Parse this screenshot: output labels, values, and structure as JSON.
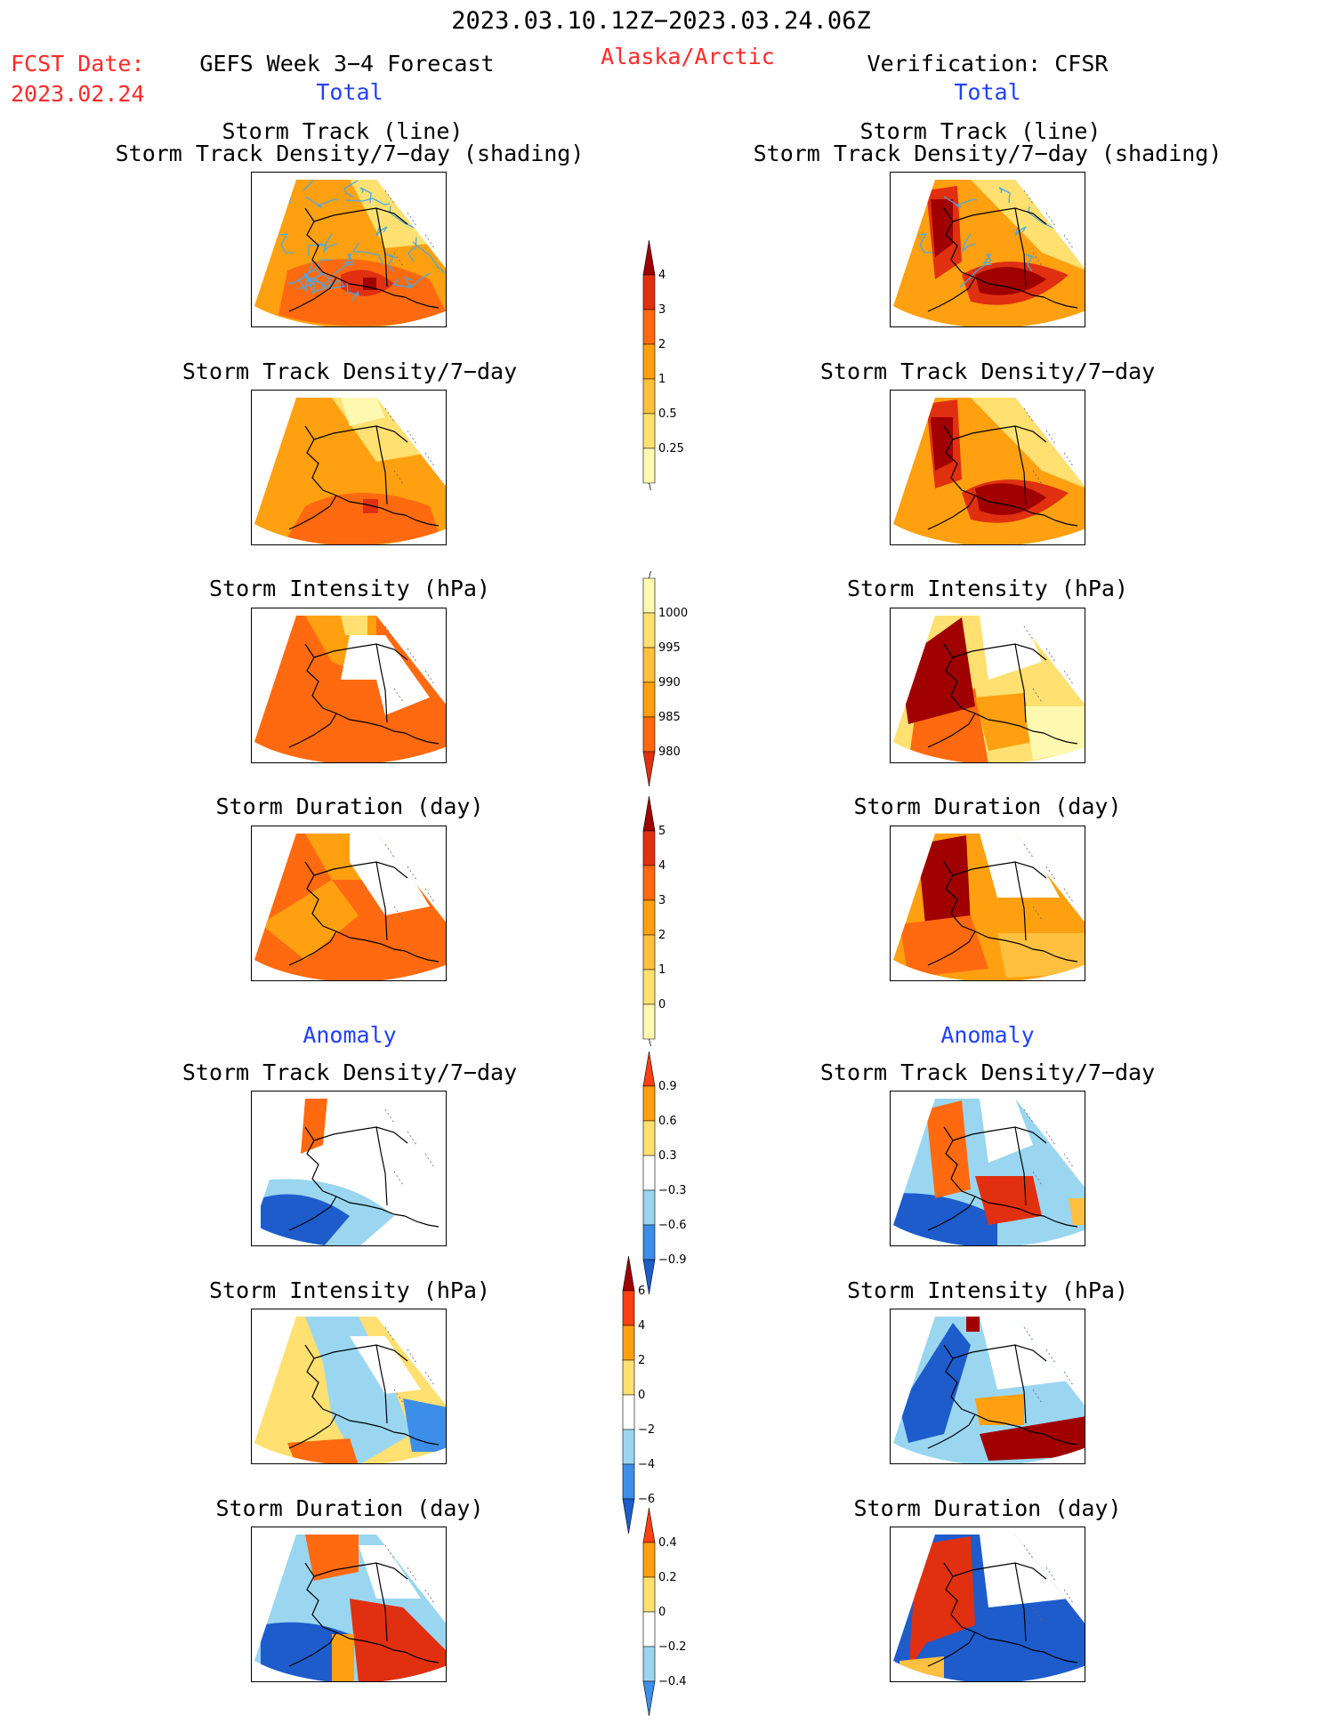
{
  "header": {
    "date_range": "2023.03.10.12Z−2023.03.24.06Z",
    "fcst_date_label": "FCST Date:",
    "fcst_date_value": "2023.02.24",
    "forecast_title": "GEFS Week 3−4 Forecast",
    "region": "Alaska/Arctic",
    "verification": "Verification: CFSR",
    "left_section": "Total",
    "right_section": "Total",
    "left_anomaly": "Anomaly",
    "right_anomaly": "Anomaly"
  },
  "panel_titles": {
    "track_line": "Storm Track (line)",
    "track_shading": "Storm Track Density/7−day (shading)",
    "density": "Storm Track Density/7−day",
    "intensity": "Storm Intensity (hPa)",
    "duration": "Storm Duration (day)"
  },
  "colorbars": {
    "density_total": [
      "4",
      "3",
      "2",
      "1",
      "0.5",
      "0.25"
    ],
    "intensity_total": [
      "1000",
      "995",
      "990",
      "985",
      "980"
    ],
    "duration_total": [
      "5",
      "4",
      "3",
      "2",
      "1",
      "0"
    ],
    "density_anomaly": [
      "0.9",
      "0.6",
      "0.3",
      "−0.3",
      "−0.6",
      "−0.9"
    ],
    "intensity_anomaly": [
      "6",
      "4",
      "2",
      "0",
      "−2",
      "−4",
      "−6"
    ],
    "duration_anomaly": [
      "0.4",
      "0.2",
      "0",
      "−0.2",
      "−0.4"
    ]
  },
  "colors": {
    "warm": [
      "#fff8b0",
      "#ffe070",
      "#ffc040",
      "#ffa010",
      "#ff6a10",
      "#e03010",
      "#a00000"
    ],
    "diverging": [
      "#1e5ccc",
      "#3d8ee8",
      "#9ad6f0",
      "#ffffff",
      "#ffe070",
      "#ffa010",
      "#ff4010",
      "#a00000"
    ],
    "track_line": "#4aa8e0"
  }
}
